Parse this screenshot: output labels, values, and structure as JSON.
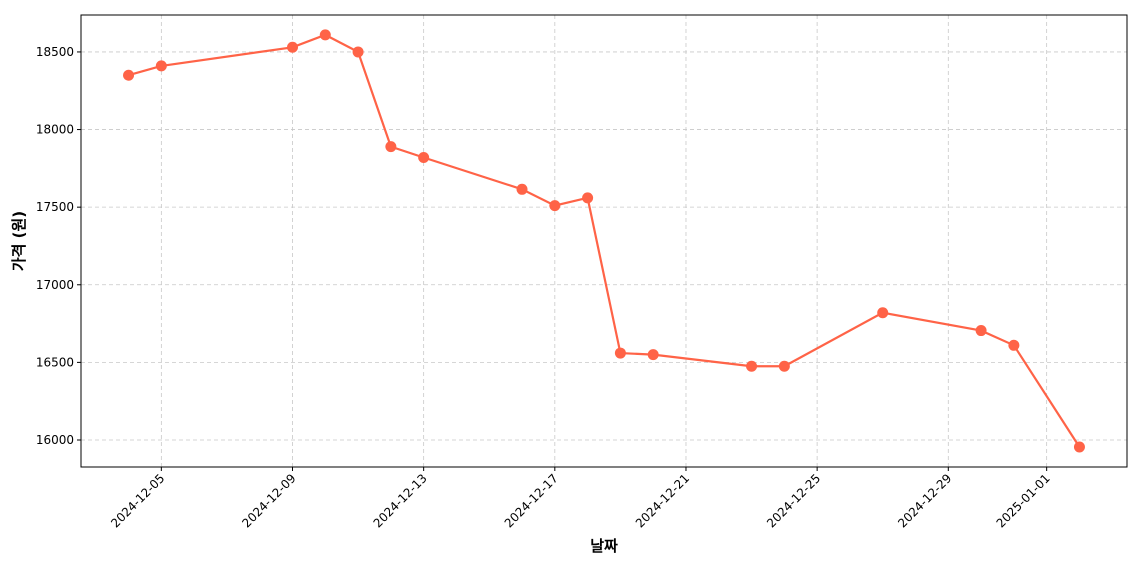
{
  "chart_data": {
    "type": "line",
    "x_label": "날짜",
    "y_label": "가격 (원)",
    "x": [
      "2024-12-04",
      "2024-12-05",
      "2024-12-09",
      "2024-12-10",
      "2024-12-11",
      "2024-12-12",
      "2024-12-13",
      "2024-12-16",
      "2024-12-17",
      "2024-12-18",
      "2024-12-19",
      "2024-12-20",
      "2024-12-23",
      "2024-12-24",
      "2024-12-27",
      "2024-12-30",
      "2024-12-31",
      "2025-01-02"
    ],
    "series": [
      {
        "color": "#ff6347",
        "values": [
          18350,
          18410,
          18530,
          18610,
          18500,
          17890,
          17820,
          17615,
          17510,
          17560,
          16560,
          16550,
          16475,
          16475,
          16820,
          16705,
          16610,
          15955
        ]
      }
    ],
    "xlim": [
      "2024-12-02T13:12:00Z",
      "2025-01-03T10:48:00Z"
    ],
    "xticks": [
      "2024-12-05",
      "2024-12-09",
      "2024-12-13",
      "2024-12-17",
      "2024-12-21",
      "2024-12-25",
      "2024-12-29",
      "2025-01-01"
    ],
    "ylim": [
      15826,
      18738
    ],
    "yticks": [
      16000,
      16500,
      17000,
      17500,
      18000,
      18500
    ],
    "grid": true
  }
}
